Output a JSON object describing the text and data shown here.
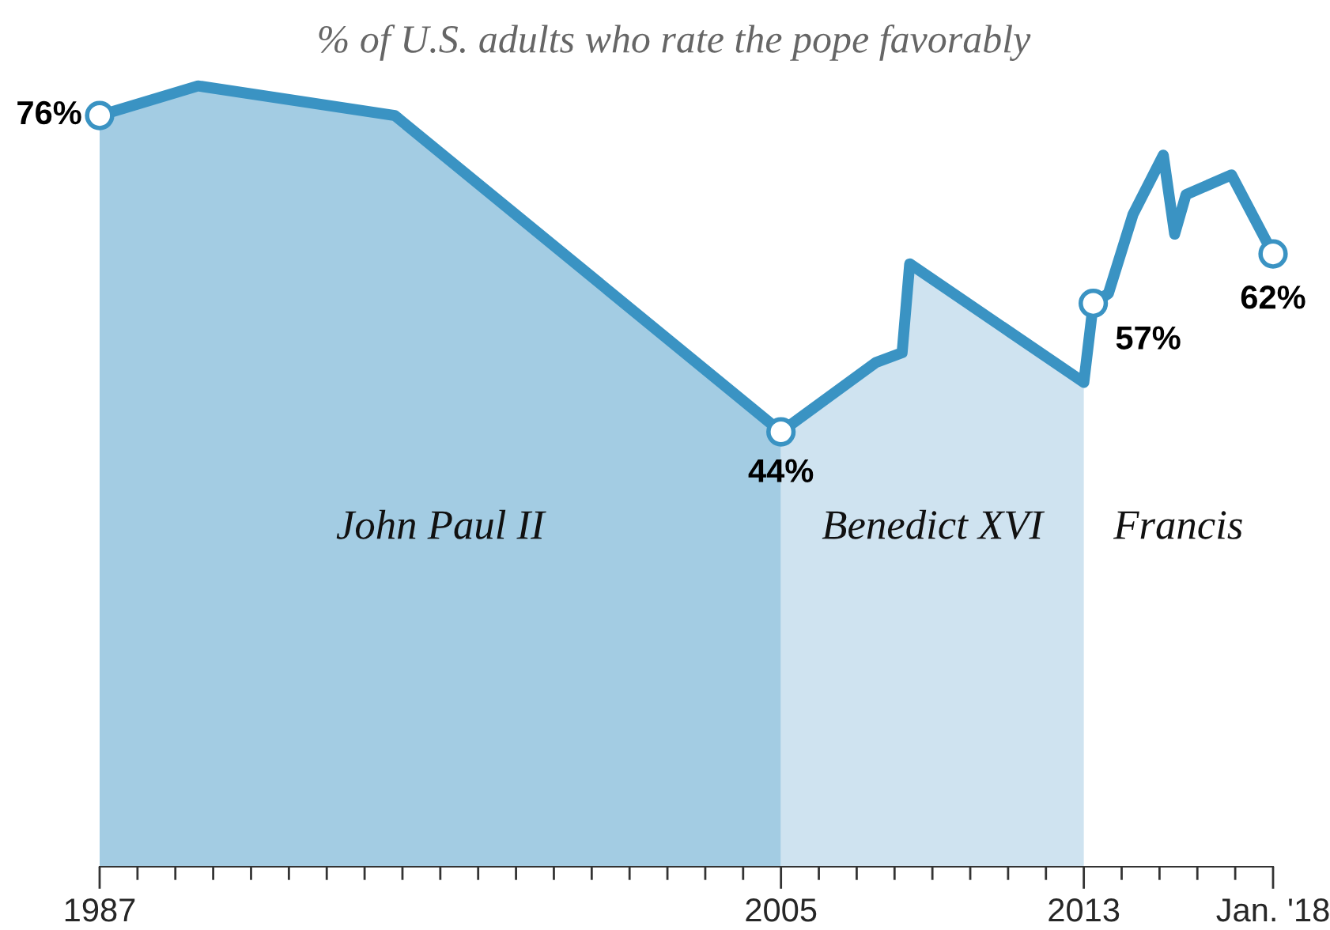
{
  "chart_data": {
    "type": "area",
    "subtitle": "% of U.S. adults who rate the pope favorably",
    "xlim": [
      1987,
      2018
    ],
    "tick_labels": "x",
    "grid": false,
    "legend": false,
    "xticks": [
      1987,
      {
        "value": 1988,
        "label": null
      },
      {
        "value": 1989,
        "label": null
      },
      {
        "value": 1990,
        "label": null
      },
      {
        "value": 1991,
        "label": null
      },
      {
        "value": 1992,
        "label": null
      },
      {
        "value": 1993,
        "label": null
      },
      {
        "value": 1994,
        "label": null
      },
      {
        "value": 1995,
        "label": null
      },
      {
        "value": 1996,
        "label": null
      },
      {
        "value": 1997,
        "label": null
      },
      {
        "value": 1998,
        "label": null
      },
      {
        "value": 1999,
        "label": null
      },
      {
        "value": 2000,
        "label": null
      },
      {
        "value": 2001,
        "label": null
      },
      {
        "value": 2002,
        "label": null
      },
      {
        "value": 2003,
        "label": null
      },
      {
        "value": 2004,
        "label": null
      },
      2005,
      {
        "value": 2006,
        "label": null
      },
      {
        "value": 2007,
        "label": null
      },
      {
        "value": 2008,
        "label": null
      },
      {
        "value": 2009,
        "label": null
      },
      {
        "value": 2010,
        "label": null
      },
      {
        "value": 2011,
        "label": null
      },
      {
        "value": 2012,
        "label": null
      },
      2013,
      {
        "value": 2014,
        "label": null
      },
      {
        "value": 2015,
        "label": null
      },
      {
        "value": 2016,
        "label": null
      },
      {
        "value": 2017,
        "label": null
      },
      {
        "value": 2018,
        "label": "Jan. '18"
      }
    ],
    "series": [
      {
        "name": "John Paul II",
        "color": "#a3cce3",
        "x": [
          1987,
          1989.6,
          1994.8,
          2005
        ],
        "values": [
          76,
          79,
          76,
          44
        ]
      },
      {
        "name": "Benedict XVI",
        "color": "#cfe3f0",
        "x": [
          2005,
          2007.5,
          2008.2,
          2008.4,
          2013
        ],
        "values": [
          44,
          51,
          52,
          61,
          49
        ]
      },
      {
        "type": "line",
        "color": "#3a93c3",
        "marker": "none",
        "x": [
          1987,
          1989.6,
          1994.8,
          2005,
          2007.5,
          2008.2,
          2008.4,
          2013,
          2013.25,
          2013.65,
          2014.3,
          2015.1,
          2015.4,
          2015.7,
          2016.9,
          2018
        ],
        "values": [
          76,
          79,
          76,
          44,
          51,
          52,
          61,
          49,
          57,
          58,
          66,
          72,
          64,
          68,
          70,
          62
        ]
      },
      {
        "type": "scatter",
        "color": "#3a93c3",
        "marker": "circle",
        "x": [
          1987,
          2005,
          2013.25,
          2018
        ],
        "values": [
          76,
          44,
          57,
          62
        ],
        "value_labels": [
          "76%",
          "44%",
          "57%",
          "62%"
        ]
      }
    ],
    "annotations": [
      "Francis"
    ]
  }
}
